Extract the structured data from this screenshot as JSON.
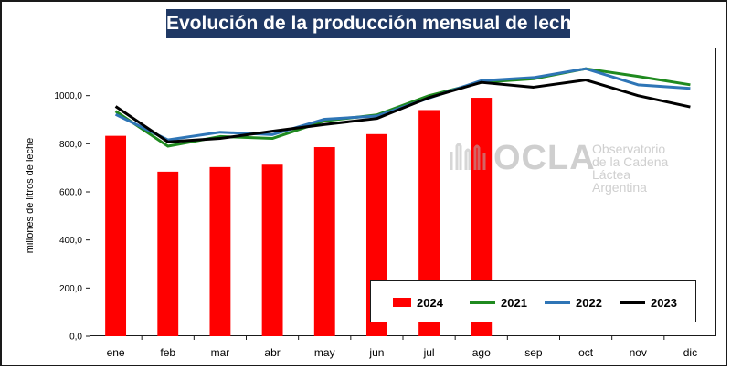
{
  "chart_data": {
    "type": "bar+line",
    "title": "Evolución de la producción mensual de leche",
    "ylabel": "millones de litros de leche",
    "xlabel": "",
    "ylim": [
      0,
      1200
    ],
    "yticks": [
      0,
      200,
      400,
      600,
      800,
      1000
    ],
    "ytick_labels": [
      "0,0",
      "200,0",
      "400,0",
      "600,0",
      "800,0",
      "1000,0"
    ],
    "categories": [
      "ene",
      "feb",
      "mar",
      "abr",
      "may",
      "jun",
      "jul",
      "ago",
      "sep",
      "oct",
      "nov",
      "dic"
    ],
    "bar_series": {
      "name": "2024",
      "color": "#ff0000",
      "values": [
        833,
        684,
        703,
        713,
        786,
        840,
        940,
        991
      ]
    },
    "line_series": [
      {
        "name": "2021",
        "color": "#1f8a1f",
        "values": [
          935,
          790,
          830,
          822,
          895,
          920,
          1000,
          1055,
          1070,
          1112,
          1080,
          1045
        ]
      },
      {
        "name": "2022",
        "color": "#2e75b6",
        "values": [
          922,
          816,
          848,
          838,
          902,
          915,
          990,
          1062,
          1075,
          1112,
          1045,
          1030
        ]
      },
      {
        "name": "2023",
        "color": "#000000",
        "values": [
          955,
          808,
          822,
          852,
          880,
          905,
          992,
          1055,
          1035,
          1065,
          1000,
          953
        ]
      }
    ],
    "legend": {
      "position": "bottom-right",
      "order": [
        "2024",
        "2021",
        "2022",
        "2023"
      ]
    }
  },
  "watermark": {
    "brand": "OCLA",
    "line1": "Observatorio",
    "line2": "de la Cadena Láctea",
    "line3": "Argentina"
  }
}
